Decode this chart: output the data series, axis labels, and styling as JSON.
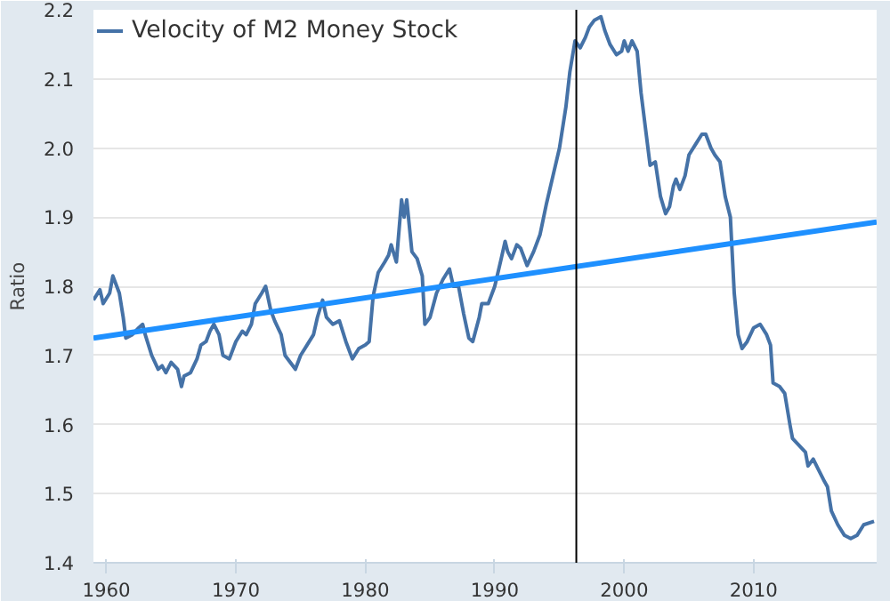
{
  "chart_data": {
    "type": "line",
    "ylabel": "Ratio",
    "xlim": [
      1959,
      2019.5
    ],
    "ylim": [
      1.4,
      2.2
    ],
    "xticks": [
      1960,
      1970,
      1980,
      1990,
      2000,
      2010
    ],
    "yticks": [
      1.4,
      1.5,
      1.6,
      1.7,
      1.8,
      1.9,
      {
        "value": 2.0,
        "label": "2.0"
      },
      2.1,
      2.2
    ],
    "grid": "y",
    "legend": "top left",
    "series": [
      {
        "name": "Velocity of M2 Money Stock",
        "color": "#4572a7",
        "x": [
          1959.0,
          1959.5,
          1959.75,
          1960.25,
          1960.5,
          1961,
          1961.3,
          1961.5,
          1962,
          1962.5,
          1962.8,
          1963,
          1963.5,
          1964,
          1964.3,
          1964.6,
          1965,
          1965.5,
          1965.8,
          1966,
          1966.5,
          1967,
          1967.3,
          1967.7,
          1968,
          1968.3,
          1968.7,
          1969,
          1969.5,
          1970,
          1970.5,
          1970.8,
          1971.2,
          1971.5,
          1972,
          1972.3,
          1972.7,
          1973,
          1973.5,
          1973.8,
          1974.2,
          1974.6,
          1975,
          1975.5,
          1976,
          1976.3,
          1976.7,
          1977,
          1977.5,
          1978,
          1978.5,
          1979,
          1979.5,
          1980,
          1980.3,
          1980.6,
          1981,
          1981.5,
          1981.8,
          1982,
          1982.4,
          1982.8,
          1983,
          1983.2,
          1983.6,
          1984,
          1984.4,
          1984.6,
          1985,
          1985.5,
          1986,
          1986.5,
          1986.8,
          1987.2,
          1987.6,
          1988,
          1988.3,
          1988.8,
          1989,
          1989.5,
          1990,
          1990.5,
          1990.8,
          1991,
          1991.3,
          1991.7,
          1992,
          1992.5,
          1993,
          1993.5,
          1994,
          1994.5,
          1995,
          1995.5,
          1995.8,
          1996.2,
          1996.6,
          1997,
          1997.3,
          1997.7,
          1998.2,
          1998.5,
          1998.9,
          1999.4,
          1999.8,
          2000,
          2000.3,
          2000.6,
          2001,
          2001.3,
          2001.7,
          2002,
          2002.4,
          2002.8,
          2003.2,
          2003.5,
          2003.8,
          2004,
          2004.3,
          2004.7,
          2005,
          2005.5,
          2006,
          2006.3,
          2006.7,
          2007,
          2007.4,
          2007.8,
          2008.2,
          2008.5,
          2008.8,
          2009.1,
          2009.5,
          2010,
          2010.5,
          2011,
          2011.3,
          2011.5,
          2012,
          2012.4,
          2012.8,
          2013,
          2013.5,
          2014,
          2014.2,
          2014.6,
          2015,
          2015.4,
          2015.7,
          2016,
          2016.5,
          2017,
          2017.5,
          2018,
          2018.5,
          2019.3
        ],
        "values": [
          1.78,
          1.795,
          1.775,
          1.79,
          1.815,
          1.79,
          1.755,
          1.725,
          1.73,
          1.74,
          1.745,
          1.73,
          1.7,
          1.68,
          1.685,
          1.675,
          1.69,
          1.68,
          1.655,
          1.67,
          1.675,
          1.695,
          1.715,
          1.72,
          1.735,
          1.745,
          1.73,
          1.7,
          1.695,
          1.72,
          1.735,
          1.73,
          1.745,
          1.775,
          1.79,
          1.8,
          1.765,
          1.75,
          1.73,
          1.7,
          1.69,
          1.68,
          1.7,
          1.715,
          1.73,
          1.755,
          1.78,
          1.755,
          1.745,
          1.75,
          1.72,
          1.695,
          1.71,
          1.715,
          1.72,
          1.785,
          1.82,
          1.835,
          1.845,
          1.86,
          1.835,
          1.925,
          1.9,
          1.925,
          1.85,
          1.84,
          1.815,
          1.745,
          1.755,
          1.79,
          1.81,
          1.825,
          1.8,
          1.8,
          1.76,
          1.725,
          1.72,
          1.755,
          1.775,
          1.775,
          1.8,
          1.84,
          1.865,
          1.85,
          1.84,
          1.86,
          1.855,
          1.83,
          1.85,
          1.875,
          1.92,
          1.96,
          2.0,
          2.06,
          2.11,
          2.155,
          2.145,
          2.16,
          2.175,
          2.185,
          2.19,
          2.17,
          2.15,
          2.135,
          2.14,
          2.155,
          2.14,
          2.155,
          2.14,
          2.08,
          2.02,
          1.975,
          1.98,
          1.93,
          1.905,
          1.915,
          1.945,
          1.955,
          1.94,
          1.96,
          1.99,
          2.005,
          2.02,
          2.02,
          2.0,
          1.99,
          1.98,
          1.93,
          1.9,
          1.79,
          1.73,
          1.71,
          1.72,
          1.74,
          1.745,
          1.73,
          1.715,
          1.66,
          1.655,
          1.645,
          1.6,
          1.58,
          1.57,
          1.56,
          1.54,
          1.55,
          1.535,
          1.52,
          1.51,
          1.475,
          1.455,
          1.44,
          1.435,
          1.44,
          1.455,
          1.46
        ]
      },
      {
        "type": "line",
        "color": "#1e90ff",
        "x": [
          1959,
          2019.5
        ],
        "values": [
          1.725,
          1.893
        ]
      }
    ],
    "ref_lines": [
      {
        "axis": "x",
        "value": 1996.3,
        "color": "#000000"
      }
    ]
  }
}
